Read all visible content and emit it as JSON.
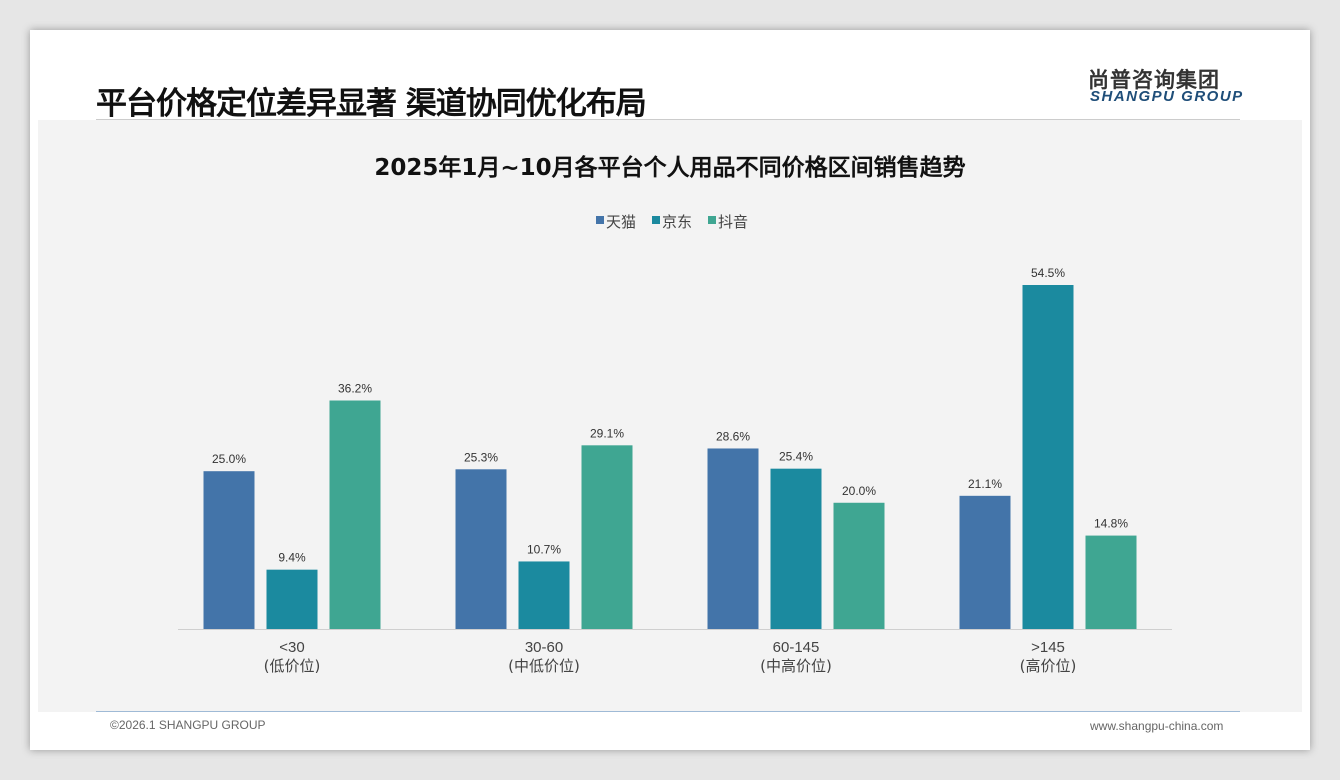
{
  "header": {
    "title": "平台价格定位差异显著 渠道协同优化布局",
    "logo_cn": "尚普咨询集团",
    "logo_en": "SHANGPU GROUP"
  },
  "footer": {
    "copyright": "©2026.1 SHANGPU GROUP",
    "website": "www.shangpu-china.com"
  },
  "colors": {
    "天猫": "#4374a9",
    "京东": "#1b8a9f",
    "抖音": "#3fa692"
  },
  "chart_data": {
    "type": "bar",
    "title": "2025年1月~10月各平台个人用品不同价格区间销售趋势",
    "categories": [
      "<30",
      "30-60",
      "60-145",
      ">145"
    ],
    "category_sublabels": [
      "(低价位)",
      "(中低价位)",
      "(中高价位)",
      "(高价位)"
    ],
    "series": [
      {
        "name": "天猫",
        "values": [
          25.0,
          25.3,
          28.6,
          21.1
        ]
      },
      {
        "name": "京东",
        "values": [
          9.4,
          10.7,
          25.4,
          54.5
        ]
      },
      {
        "name": "抖音",
        "values": [
          36.2,
          29.1,
          20.0,
          14.8
        ]
      }
    ],
    "value_suffix": "%",
    "legend": "top-center",
    "grid": false,
    "ylim": [
      0,
      60
    ]
  }
}
